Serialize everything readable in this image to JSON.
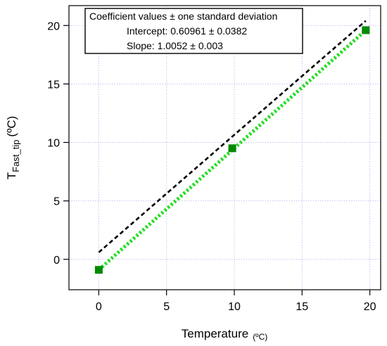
{
  "chart_data": {
    "type": "scatter",
    "xlabel": {
      "main": "Temperature",
      "unit": "(ºC)"
    },
    "ylabel": {
      "main": "T",
      "subscript": "Fast_tip",
      "unit": "(ºC)"
    },
    "xlim": [
      -2.2,
      20.8
    ],
    "ylim": [
      -2.6,
      21.7
    ],
    "xticks": [
      0,
      5,
      10,
      15,
      20
    ],
    "yticks": [
      0,
      5,
      10,
      15,
      20
    ],
    "grid": true,
    "series": [
      {
        "x": [
          0,
          9.85,
          19.7
        ],
        "y": [
          -0.9,
          9.5,
          19.6
        ],
        "color": "#008a00",
        "marker": "square",
        "line": "none"
      },
      {
        "x": [
          0,
          19.7
        ],
        "y": [
          -0.9,
          19.6
        ],
        "color": "#22dd22",
        "line": "dotted"
      },
      {
        "x": [
          0,
          19.7
        ],
        "y": [
          0.6,
          20.4
        ],
        "color": "#000000",
        "line": "dashed"
      }
    ],
    "annotation": {
      "lines": [
        "Coefficient values ± one standard deviation",
        "Intercept: 0.60961 ± 0.0382",
        "Slope:  1.0052 ± 0.003"
      ]
    }
  }
}
